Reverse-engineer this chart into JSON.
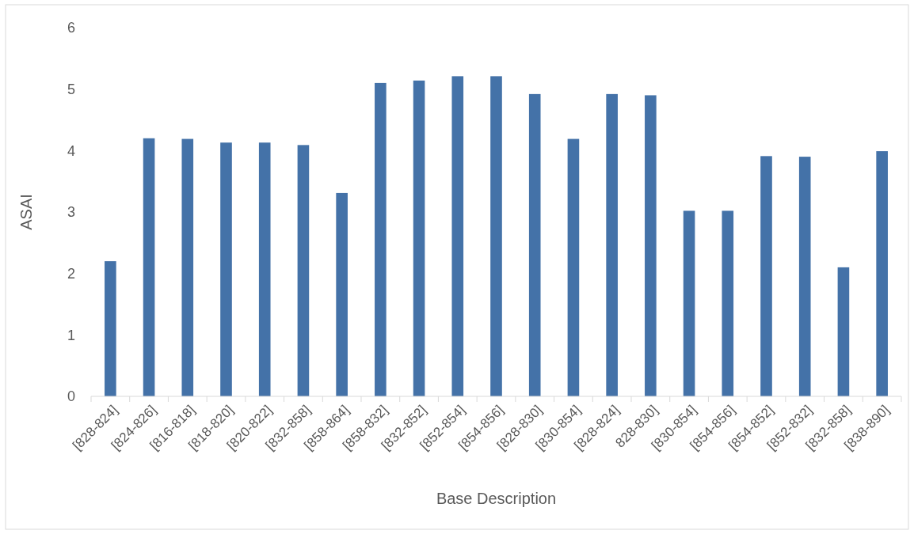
{
  "chart_data": {
    "type": "bar",
    "xlabel": "Base Description",
    "ylabel": "ASAI",
    "categories": [
      "[828-824]",
      "[824-826]",
      "[816-818]",
      "[818-820]",
      "[820-822]",
      "[832-858]",
      "[858-864]",
      "[858-832]",
      "[832-852]",
      "[852-854]",
      "[854-856]",
      "[828-830]",
      "[830-854]",
      "[828-824]",
      "828-830]",
      "[830-854]",
      "[854-856]",
      "[854-852]",
      "[852-832]",
      "[832-858]",
      "[838-890]"
    ],
    "values": [
      2.2,
      4.2,
      4.19,
      4.13,
      4.13,
      4.09,
      3.31,
      5.1,
      5.14,
      5.21,
      5.21,
      4.92,
      4.19,
      4.92,
      4.9,
      3.02,
      3.02,
      3.91,
      3.9,
      2.1,
      3.99
    ],
    "color": "#4472a8",
    "ylim": [
      0,
      6
    ],
    "yticks": [
      0,
      1,
      2,
      3,
      4,
      5,
      6
    ],
    "grid": false
  }
}
